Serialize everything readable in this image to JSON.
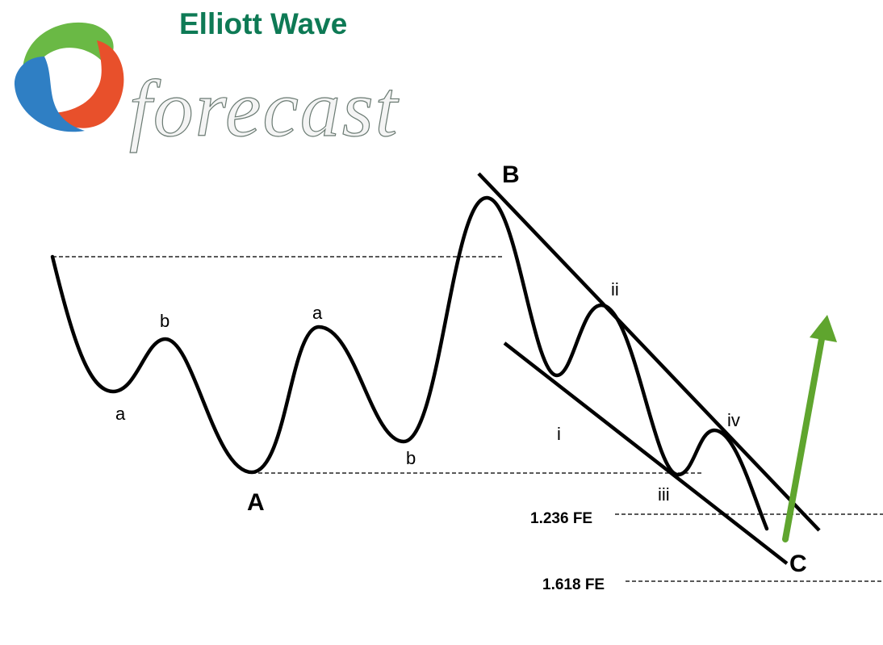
{
  "logo": {
    "line1": "Elliott Wave",
    "line2": "forecast",
    "text_color": "#0e7a55"
  },
  "labels": {
    "start_a": "a",
    "start_b": "b",
    "wave_A": "A",
    "second_a": "a",
    "second_b": "b",
    "wave_B": "B",
    "wave_i": "i",
    "wave_ii": "ii",
    "wave_iii": "iii",
    "wave_iv": "iv",
    "wave_C": "C"
  },
  "levels": {
    "fe_1236": "1.236 FE",
    "fe_1618": "1.618 FE"
  },
  "colors": {
    "wave": "#000000",
    "arrow": "#5fa52e"
  }
}
